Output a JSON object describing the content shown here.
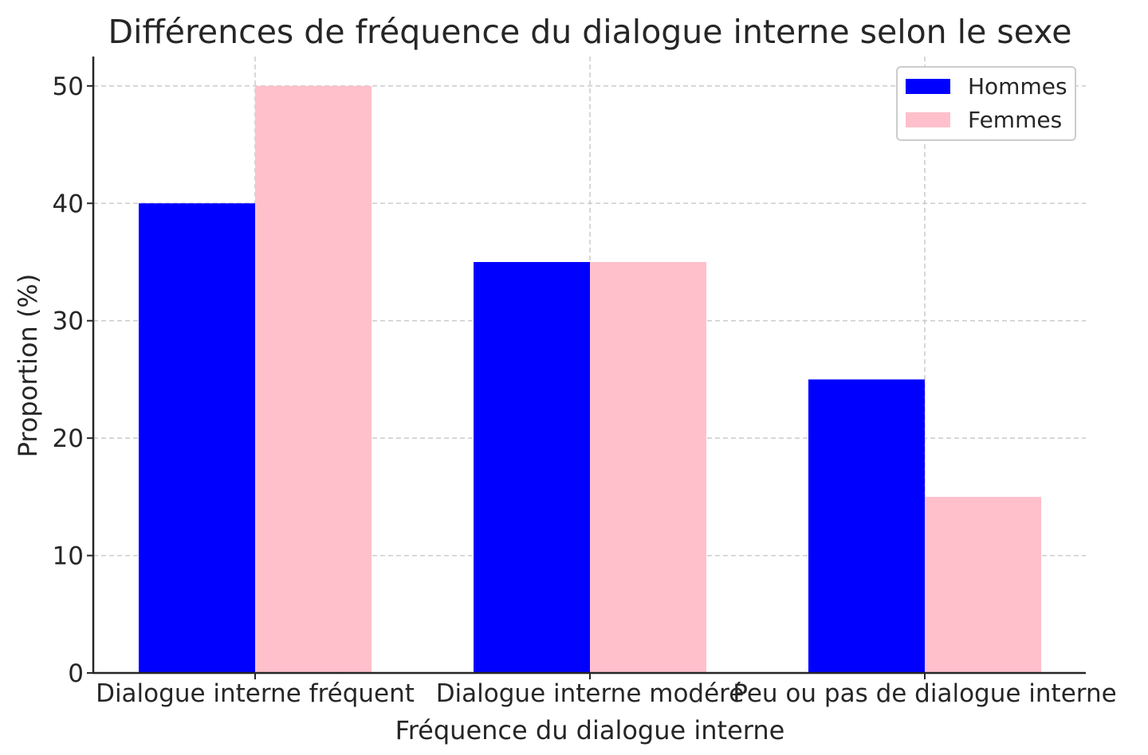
{
  "chart_data": {
    "type": "bar",
    "title": "Différences de fréquence du dialogue interne selon le sexe",
    "xlabel": "Fréquence du dialogue interne",
    "ylabel": "Proportion (%)",
    "categories": [
      "Dialogue interne fréquent",
      "Dialogue interne modéré",
      "Peu ou pas de dialogue interne"
    ],
    "series": [
      {
        "name": "Hommes",
        "values": [
          40,
          35,
          25
        ],
        "color": "#0000ff"
      },
      {
        "name": "Femmes",
        "values": [
          50,
          35,
          15
        ],
        "color": "#ffc0cb"
      }
    ],
    "ylim": [
      0,
      52.5
    ],
    "yticks": [
      "0",
      "10",
      "20",
      "30",
      "40",
      "50"
    ],
    "grid": true,
    "legend": "top-right"
  }
}
